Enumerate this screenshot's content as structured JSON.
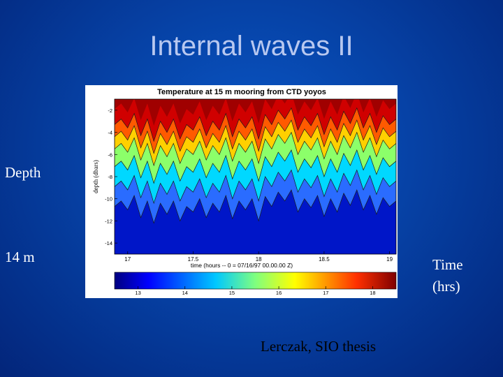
{
  "slide": {
    "title": "Internal waves II",
    "depth_label": "Depth",
    "depth_value": "14 m",
    "time_label_line1": "Time",
    "time_label_line2": "(hrs)",
    "credit": "Lerczak, SIO thesis"
  },
  "chart_data": {
    "type": "heatmap",
    "title": "Temperature at 15 m mooring from CTD yoyos",
    "xlabel": "time (hours -- 0 = 07/16/97 00.00.00 Z)",
    "ylabel": "depth (dbars)",
    "xlim": [
      16.9,
      19.05
    ],
    "ylim": [
      -15,
      -1
    ],
    "x_ticks": [
      17,
      17.5,
      18,
      18.5,
      19
    ],
    "x_tick_labels": [
      "17",
      "17.5",
      "18",
      "18.5",
      "19"
    ],
    "y_ticks": [
      -2,
      -4,
      -6,
      -8,
      -10,
      -12,
      -14
    ],
    "y_tick_labels": [
      "-2",
      "-4",
      "-6",
      "-8",
      "-10",
      "-12",
      "-14"
    ],
    "colorbar": {
      "min": 12.5,
      "max": 18.5,
      "ticks": [
        13,
        14,
        15,
        16,
        17,
        18
      ],
      "tick_labels": [
        "13",
        "14",
        "15",
        "16",
        "17",
        "18"
      ]
    },
    "isotherm_depth_profile": {
      "time": [
        16.9,
        16.95,
        17.0,
        17.05,
        17.1,
        17.15,
        17.2,
        17.25,
        17.3,
        17.35,
        17.4,
        17.45,
        17.5,
        17.55,
        17.6,
        17.65,
        17.7,
        17.75,
        17.8,
        17.85,
        17.9,
        17.95,
        18.0,
        18.05,
        18.1,
        18.15,
        18.2,
        18.25,
        18.3,
        18.35,
        18.4,
        18.45,
        18.5,
        18.55,
        18.6,
        18.65,
        18.7,
        18.75,
        18.8,
        18.85,
        18.9,
        18.95,
        19.0,
        19.05
      ],
      "depth_of_17C": [
        -5.5,
        -5.0,
        -5.8,
        -4.5,
        -6.5,
        -5.0,
        -7.0,
        -5.2,
        -6.2,
        -5.0,
        -6.8,
        -5.5,
        -6.0,
        -4.8,
        -6.5,
        -5.2,
        -6.0,
        -4.5,
        -6.6,
        -5.0,
        -5.8,
        -4.8,
        -6.8,
        -4.6,
        -5.5,
        -4.2,
        -5.0,
        -4.0,
        -6.0,
        -4.8,
        -5.6,
        -4.5,
        -6.4,
        -4.8,
        -6.0,
        -4.3,
        -5.4,
        -4.0,
        -5.8,
        -4.5,
        -6.2,
        -4.7,
        -5.5,
        -5.0
      ],
      "isotherm_offsets": [
        2.2,
        1.1,
        0.0,
        -1.6,
        -3.4,
        -5.2
      ]
    }
  }
}
